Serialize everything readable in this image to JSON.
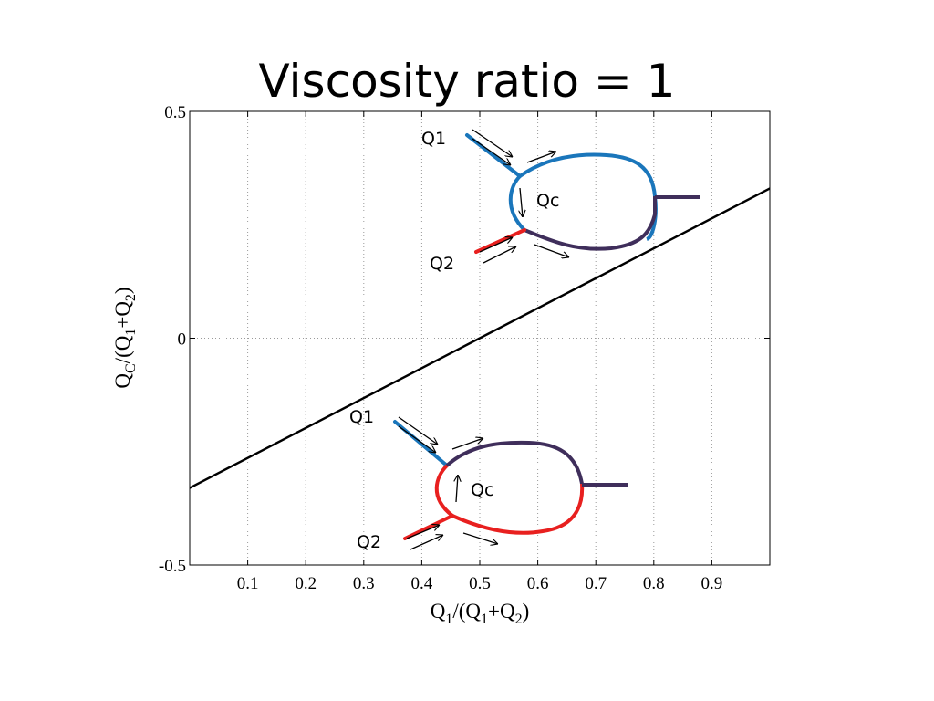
{
  "title": "Viscosity ratio = 1",
  "chart_data": {
    "type": "line",
    "title": "Viscosity ratio = 1",
    "xlabel": "Q1/(Q1+Q2)",
    "ylabel": "QC/(Q1+Q2)",
    "xlim": [
      0,
      1
    ],
    "ylim": [
      -0.5,
      0.5
    ],
    "xticks": [
      0.1,
      0.2,
      0.3,
      0.4,
      0.5,
      0.6,
      0.7,
      0.8,
      0.9
    ],
    "xtick_labels": [
      "0.1",
      "0.2",
      "0.3",
      "0.4",
      "0.5",
      "0.6",
      "0.7",
      "0.8",
      "0.9"
    ],
    "yticks": [
      0.5,
      0,
      -0.5
    ],
    "ytick_labels": [
      "0.5",
      "0",
      "-0.5"
    ],
    "grid": "vertical dotted",
    "series": [
      {
        "x": [
          0,
          1
        ],
        "y": [
          -0.33,
          0.33
        ],
        "color": "#000000"
      }
    ],
    "annotations": {
      "top": {
        "q1": "Q1",
        "qc": "Qc",
        "q2": "Q2"
      },
      "bottom": {
        "q1": "Q1",
        "qc": "Qc",
        "q2": "Q2"
      }
    },
    "colors": {
      "blue": "#1a76bb",
      "red": "#e8201f",
      "purple": "#3f2e5b"
    }
  }
}
